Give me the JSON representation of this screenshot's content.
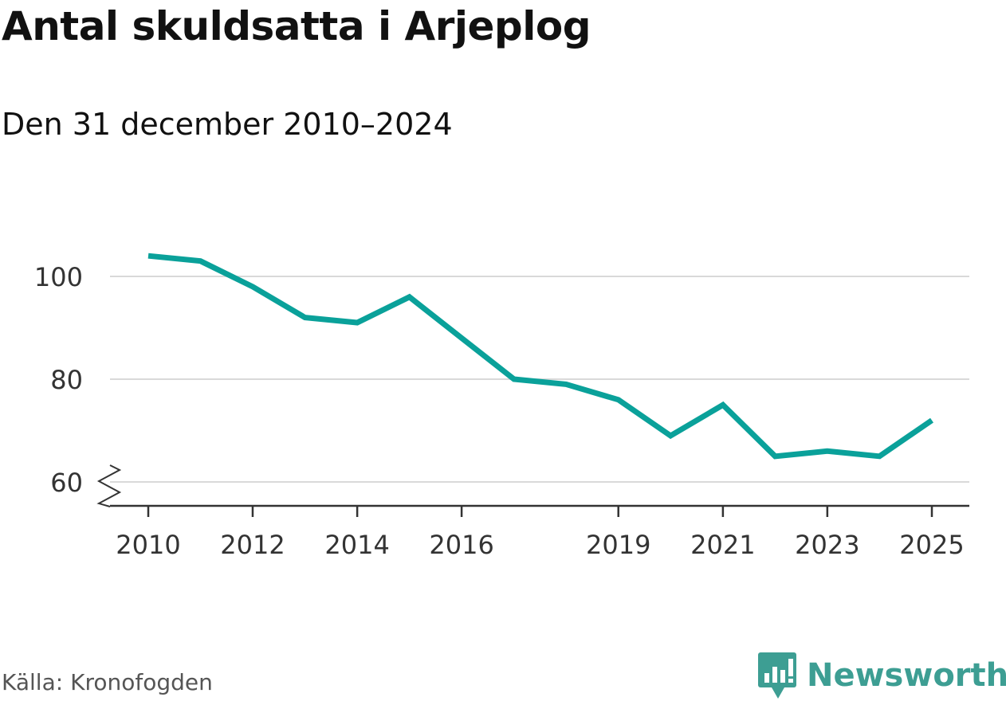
{
  "header": {
    "title": "Antal skuldsatta i Arjeplog",
    "subtitle": "Den 31 december 2010–2024"
  },
  "footer": {
    "source": "Källa: Kronofogden",
    "brand": "Newsworthy"
  },
  "colors": {
    "line": "#0aa19a",
    "grid": "#d9d9d9",
    "axis": "#333333",
    "brand": "#3d9e93"
  },
  "chart_data": {
    "type": "line",
    "title": "Antal skuldsatta i Arjeplog",
    "subtitle": "Den 31 december 2010–2024",
    "xlabel": "",
    "ylabel": "",
    "x": [
      "2010-01-01",
      "2011-01-01",
      "2012-01-01",
      "2013-01-01",
      "2014-01-01",
      "2015-01-01",
      "2016-01-01",
      "2017-01-01",
      "2018-01-01",
      "2019-01-01",
      "2020-01-01",
      "2021-01-01",
      "2022-01-01",
      "2023-01-01",
      "2024-01-01",
      "2025-01-01"
    ],
    "series": [
      {
        "values": [
          104,
          103,
          98,
          92,
          91,
          96,
          88,
          80,
          79,
          76,
          69,
          75,
          65,
          66,
          65,
          72
        ]
      }
    ],
    "xlim": [
      "2010-01-01",
      "2025-01-01"
    ],
    "ylim": [
      55,
      105
    ],
    "y_ticks": [
      60,
      80,
      100
    ],
    "x_ticks": [
      "2010",
      "2012",
      "2014",
      "2016",
      "2019",
      "2021",
      "2023",
      "2025"
    ],
    "grid": true,
    "y_axis_break": true
  }
}
